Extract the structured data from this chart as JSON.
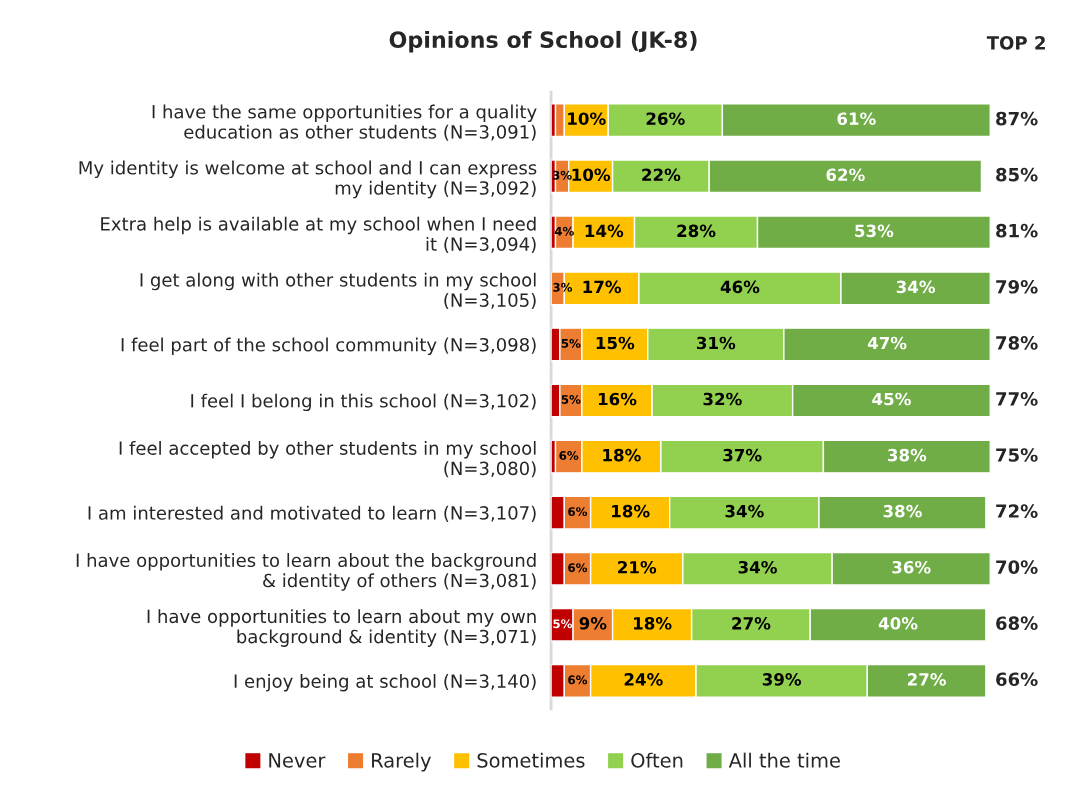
{
  "chart_data": {
    "type": "bar",
    "orientation": "horizontal",
    "stacked": true,
    "title": "Opinions of School (JK-8)",
    "categories": [
      "I have the same opportunities for a quality education as other students (N=3,091)",
      "My identity is welcome at school and I can express my identity (N=3,092)",
      "Extra help is available at my school when I need it (N=3,094)",
      "I get along with other students in my school (N=3,105)",
      "I feel part of the school community (N=3,098)",
      "I feel I belong in this school (N=3,102)",
      "I feel accepted by other students in my school (N=3,080)",
      "I am interested and motivated to learn (N=3,107)",
      "I have opportunities to learn about the background & identity of others (N=3,081)",
      "I have opportunities to learn about my own background & identity (N=3,071)",
      "I enjoy being at school (N=3,140)"
    ],
    "series": [
      {
        "name": "Never",
        "color": "#c00000",
        "values": [
          1,
          1,
          1,
          0,
          2,
          2,
          1,
          3,
          3,
          5,
          3
        ],
        "value_labels": [
          null,
          null,
          null,
          null,
          null,
          null,
          null,
          null,
          null,
          "5%",
          null
        ]
      },
      {
        "name": "Rarely",
        "color": "#ed7d31",
        "values": [
          2,
          3,
          4,
          3,
          5,
          5,
          6,
          6,
          6,
          9,
          6
        ],
        "value_labels": [
          null,
          "3%",
          "4%",
          "3%",
          "5%",
          "5%",
          "6%",
          "6%",
          "6%",
          "9%",
          "6%"
        ]
      },
      {
        "name": "Sometimes",
        "color": "#ffc000",
        "values": [
          10,
          10,
          14,
          17,
          15,
          16,
          18,
          18,
          21,
          18,
          24
        ],
        "value_labels": [
          "10%",
          "10%",
          "14%",
          "17%",
          "15%",
          "16%",
          "18%",
          "18%",
          "21%",
          "18%",
          "24%"
        ]
      },
      {
        "name": "Often",
        "color": "#92d050",
        "values": [
          26,
          22,
          28,
          46,
          31,
          32,
          37,
          34,
          34,
          27,
          39
        ],
        "value_labels": [
          "26%",
          "22%",
          "28%",
          "46%",
          "31%",
          "32%",
          "37%",
          "34%",
          "34%",
          "27%",
          "39%"
        ]
      },
      {
        "name": "All the time",
        "color": "#70ad47",
        "values": [
          61,
          62,
          53,
          34,
          47,
          45,
          38,
          38,
          36,
          40,
          27
        ],
        "value_labels": [
          "61%",
          "62%",
          "53%",
          "34%",
          "47%",
          "45%",
          "38%",
          "38%",
          "36%",
          "40%",
          "27%"
        ]
      }
    ],
    "annotations": [
      "TOP 2",
      "87%",
      "85%",
      "81%",
      "79%",
      "78%",
      "77%",
      "75%",
      "72%",
      "70%",
      "68%",
      "66%"
    ],
    "legend": "bottom",
    "grid": false
  }
}
